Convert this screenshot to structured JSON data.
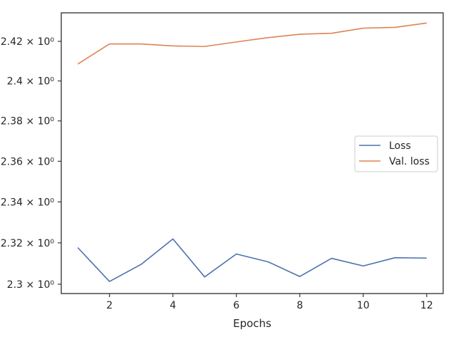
{
  "chart_data": {
    "type": "line",
    "xlabel": "Epochs",
    "ylabel": "",
    "title": "",
    "x": [
      1,
      2,
      3,
      4,
      5,
      6,
      7,
      8,
      9,
      10,
      11,
      12
    ],
    "series": [
      {
        "name": "Loss",
        "color": "#4c72b0",
        "values": [
          2.3177,
          2.3013,
          2.3096,
          2.3219,
          2.3035,
          2.3146,
          2.3108,
          2.3037,
          2.3125,
          2.3088,
          2.3128,
          2.3126
        ]
      },
      {
        "name": "Val. loss",
        "color": "#dd8452",
        "values": [
          2.4085,
          2.4187,
          2.4187,
          2.4177,
          2.4174,
          2.4197,
          2.4219,
          2.4236,
          2.4241,
          2.4267,
          2.4271,
          2.4293
        ]
      }
    ],
    "xlim": [
      0.48,
      12.52
    ],
    "ylim": [
      2.2955,
      2.4345
    ],
    "y_scale": "log",
    "xticks": [
      2,
      4,
      6,
      8,
      10,
      12
    ],
    "xtick_labels": [
      "2",
      "4",
      "6",
      "8",
      "10",
      "12"
    ],
    "yticks": [
      2.3,
      2.32,
      2.34,
      2.36,
      2.38,
      2.4,
      2.42
    ],
    "ytick_labels": [
      "2.3 × 10⁰",
      "2.32 × 10⁰",
      "2.34 × 10⁰",
      "2.36 × 10⁰",
      "2.38 × 10⁰",
      "2.4 × 10⁰",
      "2.42 × 10⁰"
    ],
    "grid": false,
    "legend_position": "center-right"
  }
}
